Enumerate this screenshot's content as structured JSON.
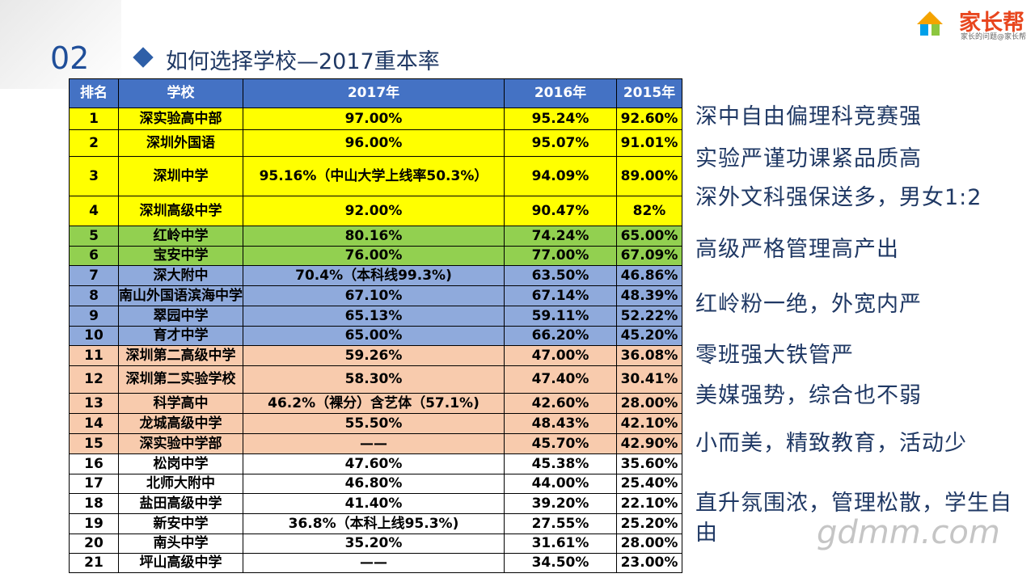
{
  "header": {
    "number": "02",
    "title": "如何选择学校—2017重本率",
    "logo": "家长帮",
    "logo_sub": "家长的问题@家长帮"
  },
  "table": {
    "columns": [
      "排名",
      "学校",
      "2017年",
      "2016年",
      "2015年"
    ],
    "rows": [
      [
        "1",
        "深实验高中部",
        "97.00%",
        "95.24%",
        "92.60%"
      ],
      [
        "2",
        "深圳外国语",
        "96.00%",
        "95.07%",
        "91.01%"
      ],
      [
        "3",
        "深圳中学",
        "95.16%（中山大学上线率50.3%）",
        "94.09%",
        "89.00%"
      ],
      [
        "4",
        "深圳高级中学",
        "92.00%",
        "90.47%",
        "82%"
      ],
      [
        "5",
        "红岭中学",
        "80.16%",
        "74.24%",
        "65.00%"
      ],
      [
        "6",
        "宝安中学",
        "76.00%",
        "77.00%",
        "67.09%"
      ],
      [
        "7",
        "深大附中",
        "70.4%（本科线99.3%)",
        "63.50%",
        "46.86%"
      ],
      [
        "8",
        "南山外国语滨海中学",
        "67.10%",
        "67.14%",
        "48.39%"
      ],
      [
        "9",
        "翠园中学",
        "65.13%",
        "59.11%",
        "52.22%"
      ],
      [
        "10",
        "育才中学",
        "65.00%",
        "66.20%",
        "45.20%"
      ],
      [
        "11",
        "深圳第二高级中学",
        "59.26%",
        "47.00%",
        "36.08%"
      ],
      [
        "12",
        "深圳第二实验学校",
        "58.30%",
        "47.40%",
        "30.41%"
      ],
      [
        "13",
        "科学高中",
        "46.2%（裸分）含艺体（57.1%)",
        "42.60%",
        "28.00%"
      ],
      [
        "14",
        "龙城高级中学",
        "55.50%",
        "48.43%",
        "42.10%"
      ],
      [
        "15",
        "深实验中学部",
        "——",
        "45.70%",
        "42.90%"
      ],
      [
        "16",
        "松岗中学",
        "47.60%",
        "45.38%",
        "35.60%"
      ],
      [
        "17",
        "北师大附中",
        "46.80%",
        "44.00%",
        "25.40%"
      ],
      [
        "18",
        "盐田高级中学",
        "41.40%",
        "39.20%",
        "22.10%"
      ],
      [
        "19",
        "新安中学",
        "36.8%（本科上线95.3%)",
        "27.55%",
        "25.20%"
      ],
      [
        "20",
        "南头中学",
        "35.20%",
        "31.61%",
        "28.00%"
      ],
      [
        "21",
        "坪山高级中学",
        "——",
        "34.50%",
        "23.00%"
      ]
    ]
  },
  "notes": [
    "深中自由偏理科竞赛强",
    "实验严谨功课紧品质高",
    "深外文科强保送多，男女1:2",
    "高级严格管理高产出",
    "红岭粉一绝，外宽内严",
    "零班强大铁管严",
    "美媒强势，综合也不弱",
    "小而美，精致教育，活动少",
    "直升氛围浓，管理松散，学生自由"
  ],
  "watermark": "gdmm.com"
}
